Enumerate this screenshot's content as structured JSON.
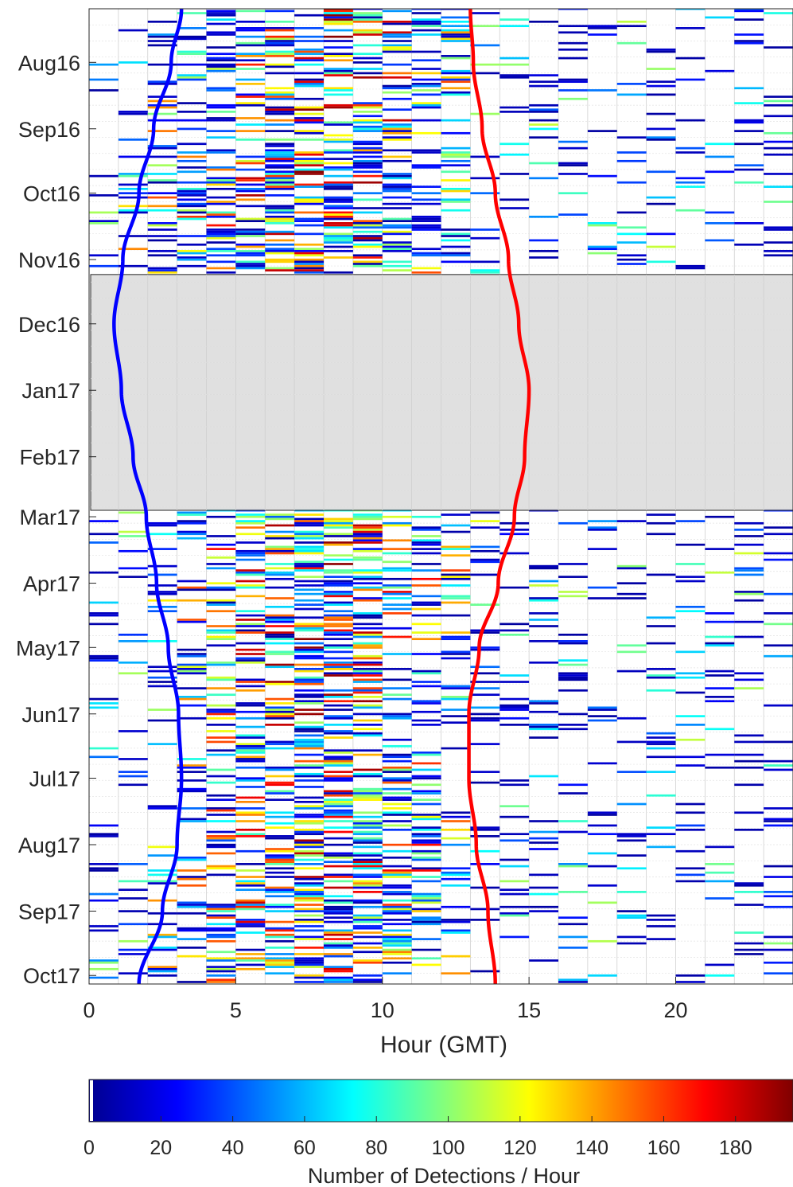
{
  "chart_data": {
    "type": "heatmap",
    "xlabel": "Hour (GMT)",
    "x_ticks": [
      "0",
      "5",
      "10",
      "15",
      "20"
    ],
    "xlim": [
      0,
      24
    ],
    "y_ticks": [
      "Aug16",
      "Sep16",
      "Oct16",
      "Nov16",
      "Dec16",
      "Jan17",
      "Feb17",
      "Mar17",
      "Apr17",
      "May17",
      "Jun17",
      "Jul17",
      "Aug17",
      "Sep17",
      "Oct17"
    ],
    "y_tick_dates": [
      "2016-08-01",
      "2016-09-01",
      "2016-10-01",
      "2016-11-01",
      "2016-12-01",
      "2017-01-01",
      "2017-02-01",
      "2017-03-01",
      "2017-04-01",
      "2017-05-01",
      "2017-06-01",
      "2017-07-01",
      "2017-08-01",
      "2017-09-01",
      "2017-10-01"
    ],
    "ylim": [
      "2016-07-07",
      "2017-10-05"
    ],
    "y_reversed": true,
    "grid": true,
    "gap_period": {
      "start": "2016-11-08",
      "end": "2017-02-26",
      "color": "#d9d9d9"
    },
    "colormap": "jet",
    "colorbar": {
      "label": "Number of Detections / Hour",
      "range": [
        0,
        196
      ],
      "ticks": [
        "0",
        "20",
        "40",
        "60",
        "80",
        "100",
        "120",
        "140",
        "160",
        "180"
      ]
    },
    "series": [
      {
        "role": "sunrise",
        "color": "#0000ff",
        "points": [
          [
            "2016-07-07",
            3.15
          ],
          [
            "2016-08-01",
            2.8
          ],
          [
            "2016-09-01",
            2.2
          ],
          [
            "2016-10-01",
            1.7
          ],
          [
            "2016-11-01",
            1.15
          ],
          [
            "2016-12-01",
            0.85
          ],
          [
            "2017-01-01",
            1.1
          ],
          [
            "2017-02-01",
            1.5
          ],
          [
            "2017-03-01",
            1.95
          ],
          [
            "2017-04-01",
            2.3
          ],
          [
            "2017-05-01",
            2.7
          ],
          [
            "2017-06-01",
            3.05
          ],
          [
            "2017-07-01",
            3.15
          ],
          [
            "2017-08-01",
            3.0
          ],
          [
            "2017-09-01",
            2.5
          ],
          [
            "2017-10-05",
            1.7
          ]
        ]
      },
      {
        "role": "sunset",
        "color": "#ff0000",
        "points": [
          [
            "2016-07-07",
            13.0
          ],
          [
            "2016-08-01",
            13.1
          ],
          [
            "2016-09-01",
            13.4
          ],
          [
            "2016-10-01",
            13.85
          ],
          [
            "2016-11-01",
            14.3
          ],
          [
            "2016-12-01",
            14.65
          ],
          [
            "2017-01-01",
            15.0
          ],
          [
            "2017-02-01",
            14.85
          ],
          [
            "2017-03-01",
            14.5
          ],
          [
            "2017-04-01",
            13.95
          ],
          [
            "2017-05-01",
            13.3
          ],
          [
            "2017-06-01",
            12.95
          ],
          [
            "2017-07-01",
            12.95
          ],
          [
            "2017-08-01",
            13.2
          ],
          [
            "2017-09-01",
            13.6
          ],
          [
            "2017-10-05",
            13.85
          ]
        ]
      }
    ],
    "detections": {
      "band_note": "daily detection counts per hour; dense between sunrise and sunset hours, sparse at night",
      "periods": [
        {
          "start": "2016-07-07",
          "end": "2016-11-08"
        },
        {
          "start": "2017-02-26",
          "end": "2017-10-05"
        }
      ],
      "seed": 7
    }
  }
}
